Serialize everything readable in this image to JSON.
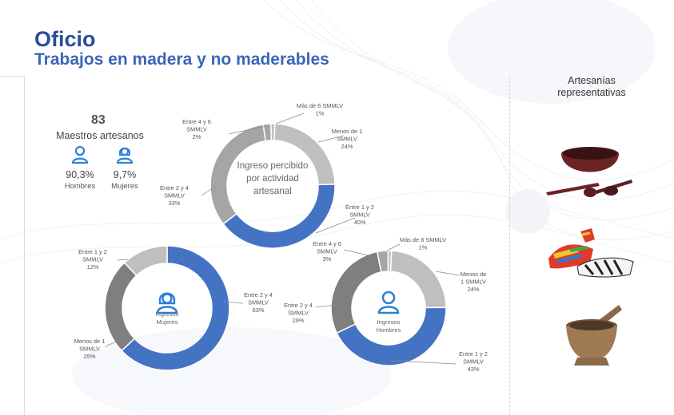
{
  "header": {
    "title": "Oficio",
    "subtitle": "Trabajos en madera y no maderables"
  },
  "artisans": {
    "count": "83",
    "label": "Maestros artesanos",
    "men_pct": "90,3%",
    "men_label": "Hombres",
    "women_pct": "9,7%",
    "women_label": "Mujeres"
  },
  "sidebar": {
    "title_line1": "Artesanías",
    "title_line2": "representativas",
    "items": [
      {
        "icon": "wooden-bowl-icon"
      },
      {
        "icon": "painted-sandal-icon"
      },
      {
        "icon": "mortar-pestle-icon"
      }
    ]
  },
  "colors": {
    "blue": "#4573c4",
    "gray_light": "#bfbfbf",
    "gray_mid": "#a5a5a5",
    "gray_dark": "#7f7f7f",
    "icon_blue": "#2f7fd6",
    "title_blue": "#2a4d9b"
  },
  "chart_data": [
    {
      "type": "pie",
      "title": "Ingreso percibido por actividad artesanal",
      "title_lines": [
        "Ingreso percibido",
        "por actividad",
        "artesanal"
      ],
      "slices": [
        {
          "name": "Menos de 1 SMMLV",
          "label_lines": [
            "Menos de 1",
            "SMMLV"
          ],
          "value": 24,
          "pct": "24%"
        },
        {
          "name": "Entre 1 y 2 SMMLV",
          "label_lines": [
            "Entre 1 y 2",
            "SMMLV"
          ],
          "value": 40,
          "pct": "40%"
        },
        {
          "name": "Entre 2 y 4 SMMLV",
          "label_lines": [
            "Entre 2 y 4",
            "SMMLV"
          ],
          "value": 33,
          "pct": "33%"
        },
        {
          "name": "Entre 4 y 6 SMMLV",
          "label_lines": [
            "Entre 4 y 6",
            "SMMLV"
          ],
          "value": 2,
          "pct": "2%"
        },
        {
          "name": "Más de 6 SMMLV",
          "label_lines": [
            "Más de 6 SMMLV"
          ],
          "value": 1,
          "pct": "1%"
        }
      ]
    },
    {
      "type": "pie",
      "title": "Ingresos Mujeres",
      "title_lines": [
        "Ingresos",
        "Mujeres"
      ],
      "slices": [
        {
          "name": "Entre 2 y 4 SMMLV",
          "label_lines": [
            "Entre 2 y 4",
            "SMMLV"
          ],
          "value": 63,
          "pct": "63%"
        },
        {
          "name": "Menos de 1 SMMLV",
          "label_lines": [
            "Menos de 1",
            "SMMLV"
          ],
          "value": 25,
          "pct": "25%"
        },
        {
          "name": "Entre 1 y 2 SMMLV",
          "label_lines": [
            "Entre 1 y 2",
            "SMMLV"
          ],
          "value": 12,
          "pct": "12%"
        }
      ]
    },
    {
      "type": "pie",
      "title": "Ingresos Hombres",
      "title_lines": [
        "Ingresos",
        "Hombres"
      ],
      "slices": [
        {
          "name": "Menos de 1 SMMLV",
          "label_lines": [
            "Menos de",
            "1 SMMLV"
          ],
          "value": 24,
          "pct": "24%"
        },
        {
          "name": "Entre 1 y 2 SMMLV",
          "label_lines": [
            "Entre 1 y 2",
            "SMMLV"
          ],
          "value": 43,
          "pct": "43%"
        },
        {
          "name": "Entre 2 y 4 SMMLV",
          "label_lines": [
            "Entre 2 y 4",
            "SMMLV"
          ],
          "value": 29,
          "pct": "29%"
        },
        {
          "name": "Entre 4 y 6 SMMLV",
          "label_lines": [
            "Entre 4 y 6",
            "SMMLV"
          ],
          "value": 3,
          "pct": "3%"
        },
        {
          "name": "Más de 6 SMMLV",
          "label_lines": [
            "Más de 6 SMMLV"
          ],
          "value": 1,
          "pct": "1%"
        }
      ]
    }
  ]
}
